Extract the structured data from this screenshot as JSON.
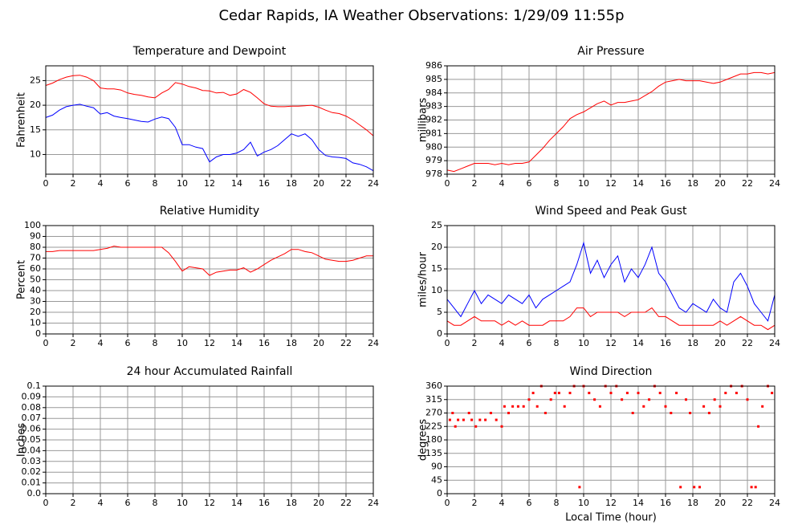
{
  "chart_data": [
    {
      "type": "line",
      "title": "Temperature and Dewpoint",
      "suptitle": "Cedar Rapids, IA Weather Observations: 1/29/09 11:55p",
      "y_label": "Fahrenheit",
      "x": [
        0,
        0.5,
        1,
        1.5,
        2,
        2.5,
        3,
        3.5,
        4,
        4.5,
        5,
        5.5,
        6,
        6.5,
        7,
        7.5,
        8,
        8.5,
        9,
        9.5,
        10,
        10.5,
        11,
        11.5,
        12,
        12.5,
        13,
        13.5,
        14,
        14.5,
        15,
        15.5,
        16,
        16.5,
        17,
        17.5,
        18,
        18.5,
        19,
        19.5,
        20,
        20.5,
        21,
        21.5,
        22,
        22.5,
        23,
        23.5,
        24
      ],
      "series": [
        {
          "color": "#ff0000",
          "values": [
            24,
            24.5,
            25.2,
            25.7,
            26,
            26.1,
            25.7,
            25,
            23.5,
            23.3,
            23.3,
            23.1,
            22.5,
            22.2,
            22,
            21.7,
            21.5,
            22.5,
            23.2,
            24.6,
            24.3,
            23.8,
            23.5,
            23,
            22.9,
            22.5,
            22.6,
            22,
            22.3,
            23.2,
            22.6,
            21.5,
            20.3,
            19.8,
            19.7,
            19.7,
            19.8,
            19.8,
            19.9,
            20,
            19.6,
            19,
            18.5,
            18.3,
            17.8,
            17,
            16,
            15,
            13.8
          ]
        },
        {
          "color": "#0000ff",
          "values": [
            17.5,
            18,
            19,
            19.7,
            20,
            20.2,
            19.8,
            19.5,
            18.2,
            18.5,
            17.8,
            17.5,
            17.3,
            17,
            16.7,
            16.6,
            17.2,
            17.6,
            17.3,
            15.5,
            12,
            12,
            11.5,
            11.2,
            8.5,
            9.5,
            10,
            10,
            10.3,
            11,
            12.5,
            9.7,
            10.5,
            11,
            11.8,
            13,
            14.2,
            13.7,
            14.2,
            13,
            11,
            9.8,
            9.5,
            9.4,
            9.2,
            8.3,
            8,
            7.5,
            6.7
          ]
        }
      ],
      "xlim": [
        0,
        24
      ],
      "xticks": [
        0,
        2,
        4,
        6,
        8,
        10,
        12,
        14,
        16,
        18,
        20,
        22,
        24
      ],
      "ylim": [
        6,
        28
      ],
      "yticks": [
        10,
        15,
        20,
        25
      ],
      "grid": true
    },
    {
      "type": "line",
      "title": "Air Pressure",
      "y_label": "millibars",
      "x": [
        0,
        0.5,
        1,
        1.5,
        2,
        2.5,
        3,
        3.5,
        4,
        4.5,
        5,
        5.5,
        6,
        6.5,
        7,
        7.5,
        8,
        8.5,
        9,
        9.5,
        10,
        10.5,
        11,
        11.5,
        12,
        12.5,
        13,
        13.5,
        14,
        14.5,
        15,
        15.5,
        16,
        16.5,
        17,
        17.5,
        18,
        18.5,
        19,
        19.5,
        20,
        20.5,
        21,
        21.5,
        22,
        22.5,
        23,
        23.5,
        24
      ],
      "series": [
        {
          "color": "#ff0000",
          "values": [
            978.3,
            978.2,
            978.4,
            978.6,
            978.8,
            978.8,
            978.8,
            978.7,
            978.8,
            978.7,
            978.8,
            978.8,
            978.9,
            979.4,
            979.9,
            980.5,
            981,
            981.5,
            982.1,
            982.4,
            982.6,
            982.9,
            983.2,
            983.4,
            983.1,
            983.3,
            983.3,
            983.4,
            983.5,
            983.8,
            984.1,
            984.5,
            984.8,
            984.9,
            985,
            984.9,
            984.9,
            984.9,
            984.8,
            984.7,
            984.8,
            985,
            985.2,
            985.4,
            985.4,
            985.5,
            985.5,
            985.4,
            985.5
          ]
        }
      ],
      "xlim": [
        0,
        24
      ],
      "xticks": [
        0,
        2,
        4,
        6,
        8,
        10,
        12,
        14,
        16,
        18,
        20,
        22,
        24
      ],
      "ylim": [
        978,
        986
      ],
      "yticks": [
        978,
        979,
        980,
        981,
        982,
        983,
        984,
        985,
        986
      ],
      "grid": true
    },
    {
      "type": "line",
      "title": "Relative Humidity",
      "y_label": "Percent",
      "x": [
        0,
        0.5,
        1,
        1.5,
        2,
        2.5,
        3,
        3.5,
        4,
        4.5,
        5,
        5.5,
        6,
        6.5,
        7,
        7.5,
        8,
        8.5,
        9,
        9.5,
        10,
        10.5,
        11,
        11.5,
        12,
        12.5,
        13,
        13.5,
        14,
        14.5,
        15,
        15.5,
        16,
        16.5,
        17,
        17.5,
        18,
        18.5,
        19,
        19.5,
        20,
        20.5,
        21,
        21.5,
        22,
        22.5,
        23,
        23.5,
        24
      ],
      "series": [
        {
          "color": "#ff0000",
          "values": [
            76,
            76,
            77,
            77,
            77,
            77,
            77,
            77,
            78,
            79,
            81,
            80,
            80,
            80,
            80,
            80,
            80,
            80,
            75,
            67,
            58,
            62,
            61,
            60,
            54,
            57,
            58,
            59,
            59,
            61,
            57,
            60,
            64,
            68,
            71,
            74,
            78,
            78,
            76,
            75,
            72,
            69,
            68,
            67,
            67,
            68,
            70,
            72,
            72
          ]
        }
      ],
      "xlim": [
        0,
        24
      ],
      "xticks": [
        0,
        2,
        4,
        6,
        8,
        10,
        12,
        14,
        16,
        18,
        20,
        22,
        24
      ],
      "ylim": [
        0,
        100
      ],
      "yticks": [
        0,
        10,
        20,
        30,
        40,
        50,
        60,
        70,
        80,
        90,
        100
      ],
      "grid": true
    },
    {
      "type": "line",
      "title": "Wind Speed and Peak Gust",
      "y_label": "miles/hour",
      "x": [
        0,
        0.5,
        1,
        1.5,
        2,
        2.5,
        3,
        3.5,
        4,
        4.5,
        5,
        5.5,
        6,
        6.5,
        7,
        7.5,
        8,
        8.5,
        9,
        9.5,
        10,
        10.5,
        11,
        11.5,
        12,
        12.5,
        13,
        13.5,
        14,
        14.5,
        15,
        15.5,
        16,
        16.5,
        17,
        17.5,
        18,
        18.5,
        19,
        19.5,
        20,
        20.5,
        21,
        21.5,
        22,
        22.5,
        23,
        23.5,
        24
      ],
      "series": [
        {
          "color": "#0000ff",
          "values": [
            8,
            6,
            4,
            7,
            10,
            7,
            9,
            8,
            7,
            9,
            8,
            7,
            9,
            6,
            8,
            9,
            10,
            11,
            12,
            16,
            21,
            14,
            17,
            13,
            16,
            18,
            12,
            15,
            13,
            16,
            20,
            14,
            12,
            9,
            6,
            5,
            7,
            6,
            5,
            8,
            6,
            5,
            12,
            14,
            11,
            7,
            5,
            3,
            9
          ]
        },
        {
          "color": "#ff0000",
          "values": [
            3,
            2,
            2,
            3,
            4,
            3,
            3,
            3,
            2,
            3,
            2,
            3,
            2,
            2,
            2,
            3,
            3,
            3,
            4,
            6,
            6,
            4,
            5,
            5,
            5,
            5,
            4,
            5,
            5,
            5,
            6,
            4,
            4,
            3,
            2,
            2,
            2,
            2,
            2,
            2,
            3,
            2,
            3,
            4,
            3,
            2,
            2,
            1,
            2
          ]
        }
      ],
      "xlim": [
        0,
        24
      ],
      "xticks": [
        0,
        2,
        4,
        6,
        8,
        10,
        12,
        14,
        16,
        18,
        20,
        22,
        24
      ],
      "ylim": [
        0,
        25
      ],
      "yticks": [
        0,
        5,
        10,
        15,
        20,
        25
      ],
      "grid": true
    },
    {
      "type": "line",
      "title": "24 hour Accumulated Rainfall",
      "y_label": "Inches",
      "x": [
        0,
        24
      ],
      "series": [
        {
          "color": "#cc0044",
          "values": [
            0,
            0
          ]
        }
      ],
      "xlim": [
        0,
        24
      ],
      "xticks": [
        0,
        2,
        4,
        6,
        8,
        10,
        12,
        14,
        16,
        18,
        20,
        22,
        24
      ],
      "ylim": [
        0,
        0.1
      ],
      "yticks": [
        {
          "value": 0,
          "label": "0.0"
        },
        0.01,
        0.02,
        0.03,
        0.04,
        0.05,
        0.06,
        0.07,
        0.08,
        0.09,
        0.1
      ],
      "grid": true
    },
    {
      "type": "scatter",
      "title": "Wind Direction",
      "y_label": "degrees",
      "x_label": "Local Time (hour)",
      "x": [
        0.2,
        0.4,
        0.6,
        0.8,
        1.2,
        1.6,
        1.8,
        2.1,
        2.4,
        2.8,
        3.2,
        3.6,
        4.0,
        4.2,
        4.5,
        4.8,
        5.2,
        5.6,
        6.0,
        6.3,
        6.6,
        6.9,
        7.2,
        7.6,
        7.9,
        8.2,
        8.6,
        9.0,
        9.3,
        9.7,
        10.0,
        10.4,
        10.8,
        11.2,
        11.6,
        12.0,
        12.4,
        12.8,
        13.2,
        13.6,
        14.0,
        14.4,
        14.8,
        15.2,
        15.6,
        16.0,
        16.4,
        16.8,
        17.1,
        17.5,
        17.8,
        18.1,
        18.5,
        18.8,
        19.2,
        19.6,
        20.0,
        20.4,
        20.8,
        21.2,
        21.6,
        22.0,
        22.3,
        22.6,
        22.8,
        23.1,
        23.5,
        23.8
      ],
      "series": [
        {
          "color": "#ff0000",
          "values": [
            247,
            270,
            225,
            247,
            247,
            270,
            247,
            225,
            247,
            247,
            270,
            247,
            225,
            292,
            270,
            292,
            292,
            292,
            315,
            337,
            292,
            360,
            270,
            315,
            337,
            337,
            292,
            337,
            360,
            22,
            360,
            337,
            315,
            292,
            360,
            337,
            360,
            315,
            337,
            270,
            337,
            292,
            315,
            360,
            337,
            292,
            270,
            337,
            22,
            315,
            270,
            22,
            22,
            292,
            270,
            315,
            292,
            337,
            360,
            337,
            360,
            315,
            22,
            22,
            225,
            292,
            360,
            337
          ]
        }
      ],
      "xlim": [
        0,
        24
      ],
      "xticks": [
        0,
        2,
        4,
        6,
        8,
        10,
        12,
        14,
        16,
        18,
        20,
        22,
        24
      ],
      "ylim": [
        0,
        360
      ],
      "yticks": [
        0,
        45,
        90,
        135,
        180,
        225,
        270,
        315,
        360
      ],
      "grid": true
    }
  ]
}
